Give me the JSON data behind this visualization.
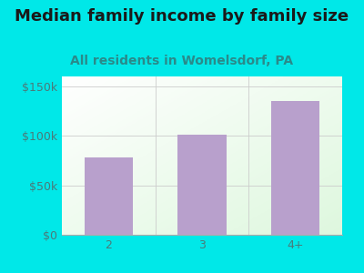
{
  "title": "Median family income by family size",
  "subtitle": "All residents in Womelsdorf, PA",
  "categories": [
    "2",
    "3",
    "4+"
  ],
  "values": [
    78000,
    101000,
    135000
  ],
  "bar_color": "#b8a0cc",
  "background_color": "#00e8e8",
  "title_color": "#1a1a1a",
  "subtitle_color": "#2a8a8a",
  "tick_label_color": "#4a7a7a",
  "ylim": [
    0,
    160000
  ],
  "yticks": [
    0,
    50000,
    100000,
    150000
  ],
  "ytick_labels": [
    "$0",
    "$50k",
    "$100k",
    "$150k"
  ],
  "title_fontsize": 13,
  "subtitle_fontsize": 10,
  "tick_fontsize": 9
}
